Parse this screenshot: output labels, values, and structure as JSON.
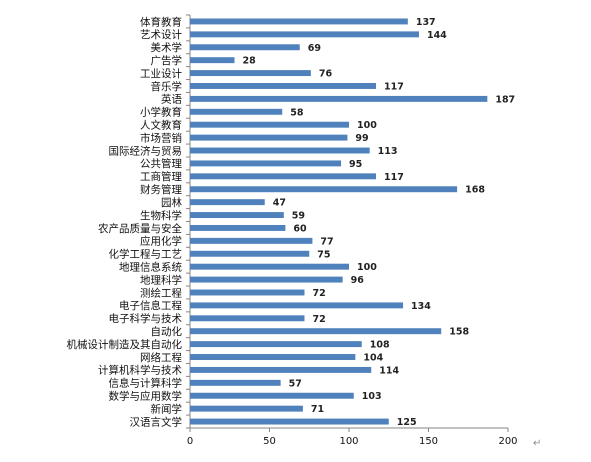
{
  "chart_data": {
    "type": "bar",
    "orientation": "horizontal",
    "title": "",
    "xlabel": "",
    "ylabel": "",
    "xlim": [
      0,
      200
    ],
    "x_ticks": [
      0,
      50,
      100,
      150,
      200
    ],
    "grid": false,
    "legend": "none",
    "bar_color": "#4f81bd",
    "categories": [
      "体育教育",
      "艺术设计",
      "美术学",
      "广告学",
      "工业设计",
      "音乐学",
      "英语",
      "小学教育",
      "人文教育",
      "市场营销",
      "国际经济与贸易",
      "公共管理",
      "工商管理",
      "财务管理",
      "园林",
      "生物科学",
      "农产品质量与安全",
      "应用化学",
      "化学工程与工艺",
      "地理信息系统",
      "地理科学",
      "测绘工程",
      "电子信息工程",
      "电子科学与技术",
      "自动化",
      "机械设计制造及其自动化",
      "网络工程",
      "计算机科学与技术",
      "信息与计算科学",
      "数学与应用数学",
      "新闻学",
      "汉语言文学"
    ],
    "values": [
      137,
      144,
      69,
      28,
      76,
      117,
      187,
      58,
      100,
      99,
      113,
      95,
      117,
      168,
      47,
      59,
      60,
      77,
      75,
      100,
      96,
      72,
      134,
      72,
      158,
      108,
      104,
      114,
      57,
      103,
      71,
      125
    ]
  },
  "paragraph_mark": "↵"
}
